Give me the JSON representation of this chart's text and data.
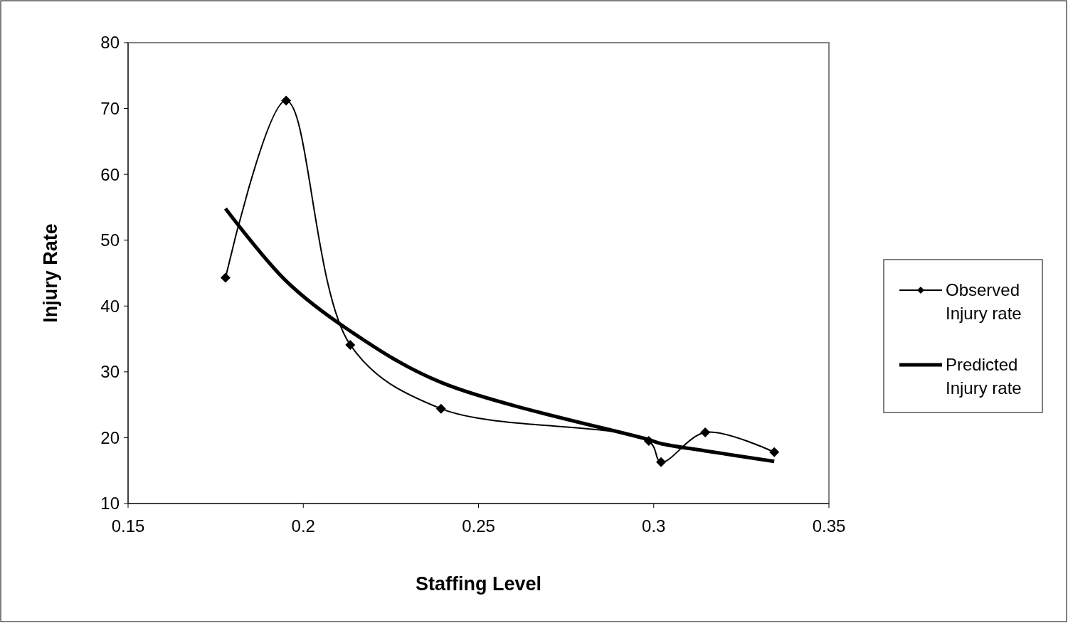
{
  "chart_data": {
    "type": "line",
    "xlabel": "Staffing Level",
    "ylabel": "Injury Rate",
    "xlim": [
      0.15,
      0.35
    ],
    "xticks": [
      0.15,
      0.2,
      0.25,
      0.3,
      0.35
    ],
    "ylim": [
      10,
      80
    ],
    "yticks": [
      10,
      20,
      30,
      40,
      50,
      60,
      70,
      80
    ],
    "x": [
      0.1778,
      0.1951,
      0.2134,
      0.2393,
      0.2986,
      0.3021,
      0.3147,
      0.3344
    ],
    "series": [
      {
        "name": "Observed Injury rate",
        "color": "#000000",
        "marker": "diamond",
        "values": [
          44.3,
          71.2,
          34.1,
          24.4,
          19.5,
          16.3,
          20.8,
          17.8
        ]
      },
      {
        "name": "Predicted Injury rate",
        "color": "#000000",
        "marker": "none",
        "values": [
          54.8,
          43.8,
          36.2,
          28.4,
          19.7,
          19.1,
          18.0,
          16.4
        ]
      }
    ],
    "grid": false,
    "legend": "right"
  }
}
